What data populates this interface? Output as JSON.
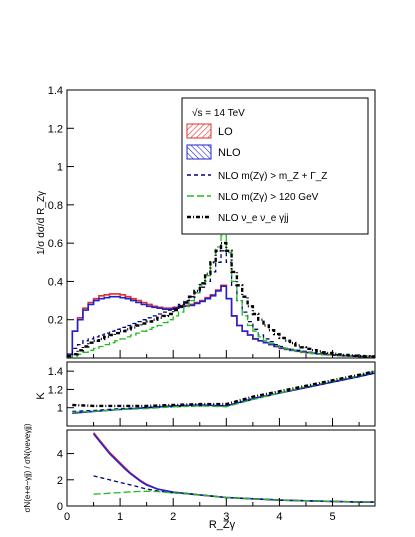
{
  "chart_data": [
    {
      "panel": "main",
      "type": "line",
      "ylabel": "1/σ dσ/d R_Zγ",
      "xlim": [
        0,
        5.8
      ],
      "ylim": [
        0,
        1.4
      ],
      "ytick_labels": [
        "0.2",
        "0.4",
        "0.6",
        "0.8",
        "1",
        "1.2",
        "1.4"
      ],
      "yticks": [
        0.2,
        0.4,
        0.6,
        0.8,
        1.0,
        1.2,
        1.4
      ],
      "legend": {
        "placement": "top-right",
        "title": "√s = 14 TeV",
        "entries": [
          {
            "label": "LO",
            "style": "hatched-box",
            "color": "#e0302a"
          },
          {
            "label": "NLO",
            "style": "hatched-box",
            "color": "#2222cc"
          },
          {
            "label": "NLO m(Zγ) > m_Z + Γ_Z",
            "style": "dashed",
            "color": "#000080"
          },
          {
            "label": "NLO m(Zγ) > 120 GeV",
            "style": "dashed",
            "color": "#22bb22"
          },
          {
            "label": "NLO ν_e ν_e γjj",
            "style": "dash-dot",
            "color": "#000000"
          }
        ]
      },
      "x": [
        0.05,
        0.15,
        0.25,
        0.35,
        0.45,
        0.55,
        0.65,
        0.75,
        0.85,
        0.95,
        1.05,
        1.15,
        1.25,
        1.35,
        1.45,
        1.55,
        1.65,
        1.75,
        1.85,
        1.95,
        2.05,
        2.15,
        2.25,
        2.35,
        2.45,
        2.55,
        2.65,
        2.75,
        2.85,
        2.95,
        3.05,
        3.15,
        3.25,
        3.35,
        3.45,
        3.55,
        3.65,
        3.75,
        3.85,
        3.95,
        4.05,
        4.15,
        4.25,
        4.35,
        4.45,
        4.55,
        4.65,
        4.75,
        4.85,
        4.95,
        5.05,
        5.15,
        5.25,
        5.35,
        5.45,
        5.55,
        5.65,
        5.75
      ],
      "series": [
        {
          "name": "LO",
          "color": "#e0302a",
          "values": [
            0.02,
            0.14,
            0.21,
            0.26,
            0.29,
            0.31,
            0.325,
            0.33,
            0.335,
            0.335,
            0.33,
            0.32,
            0.31,
            0.3,
            0.29,
            0.28,
            0.27,
            0.265,
            0.26,
            0.26,
            0.265,
            0.27,
            0.275,
            0.28,
            0.29,
            0.3,
            0.315,
            0.33,
            0.355,
            0.38,
            0.31,
            0.22,
            0.17,
            0.14,
            0.12,
            0.1,
            0.09,
            0.08,
            0.07,
            0.06,
            0.05,
            0.045,
            0.04,
            0.035,
            0.03,
            0.027,
            0.024,
            0.021,
            0.018,
            0.016,
            0.014,
            0.012,
            0.011,
            0.01,
            0.009,
            0.008,
            0.007,
            0.006
          ]
        },
        {
          "name": "NLO",
          "color": "#2222cc",
          "values": [
            0.02,
            0.14,
            0.2,
            0.25,
            0.28,
            0.3,
            0.31,
            0.315,
            0.32,
            0.32,
            0.315,
            0.31,
            0.3,
            0.29,
            0.28,
            0.27,
            0.265,
            0.26,
            0.255,
            0.255,
            0.26,
            0.265,
            0.27,
            0.275,
            0.285,
            0.295,
            0.31,
            0.325,
            0.35,
            0.375,
            0.31,
            0.22,
            0.17,
            0.14,
            0.12,
            0.1,
            0.09,
            0.08,
            0.07,
            0.06,
            0.052,
            0.046,
            0.04,
            0.036,
            0.032,
            0.028,
            0.025,
            0.022,
            0.02,
            0.018,
            0.016,
            0.014,
            0.012,
            0.011,
            0.01,
            0.009,
            0.008,
            0.007
          ]
        },
        {
          "name": "NLO m(Zγ) > m_Z + Γ_Z",
          "color": "#000080",
          "values": [
            0.01,
            0.05,
            0.07,
            0.09,
            0.1,
            0.11,
            0.12,
            0.13,
            0.14,
            0.15,
            0.16,
            0.17,
            0.18,
            0.19,
            0.2,
            0.21,
            0.22,
            0.23,
            0.24,
            0.25,
            0.26,
            0.28,
            0.3,
            0.32,
            0.34,
            0.37,
            0.4,
            0.45,
            0.5,
            0.56,
            0.5,
            0.38,
            0.3,
            0.24,
            0.19,
            0.15,
            0.12,
            0.1,
            0.085,
            0.07,
            0.06,
            0.05,
            0.045,
            0.04,
            0.035,
            0.03,
            0.026,
            0.022,
            0.02,
            0.017,
            0.015,
            0.013,
            0.011,
            0.01,
            0.009,
            0.008,
            0.007,
            0.006
          ]
        },
        {
          "name": "NLO m(Zγ) > 120 GeV",
          "color": "#22bb22",
          "values": [
            0.005,
            0.01,
            0.02,
            0.03,
            0.04,
            0.05,
            0.06,
            0.07,
            0.08,
            0.09,
            0.1,
            0.11,
            0.12,
            0.13,
            0.14,
            0.15,
            0.16,
            0.17,
            0.185,
            0.2,
            0.22,
            0.24,
            0.27,
            0.3,
            0.34,
            0.38,
            0.43,
            0.5,
            0.58,
            0.64,
            0.55,
            0.4,
            0.3,
            0.22,
            0.17,
            0.14,
            0.11,
            0.09,
            0.075,
            0.065,
            0.055,
            0.048,
            0.042,
            0.036,
            0.031,
            0.027,
            0.023,
            0.02,
            0.018,
            0.016,
            0.014,
            0.012,
            0.011,
            0.01,
            0.009,
            0.008,
            0.007,
            0.006
          ]
        },
        {
          "name": "NLO ν_e ν_e γjj",
          "color": "#000000",
          "values": [
            0.01,
            0.02,
            0.04,
            0.06,
            0.08,
            0.09,
            0.1,
            0.11,
            0.12,
            0.13,
            0.14,
            0.15,
            0.16,
            0.17,
            0.18,
            0.19,
            0.2,
            0.21,
            0.22,
            0.23,
            0.25,
            0.27,
            0.29,
            0.32,
            0.35,
            0.39,
            0.44,
            0.5,
            0.56,
            0.6,
            0.56,
            0.45,
            0.38,
            0.32,
            0.27,
            0.23,
            0.2,
            0.17,
            0.145,
            0.125,
            0.105,
            0.09,
            0.078,
            0.066,
            0.056,
            0.048,
            0.041,
            0.035,
            0.03,
            0.026,
            0.022,
            0.019,
            0.016,
            0.014,
            0.012,
            0.01,
            0.009,
            0.008
          ]
        }
      ]
    },
    {
      "panel": "K-factor",
      "type": "line",
      "ylabel": "K",
      "xlim": [
        0,
        5.8
      ],
      "ylim": [
        0.8,
        1.5
      ],
      "ytick_labels": [
        "1",
        "1.2",
        "1.4"
      ],
      "yticks": [
        1.0,
        1.2,
        1.4
      ],
      "x": [
        0.1,
        0.5,
        1.0,
        1.5,
        2.0,
        2.5,
        3.0,
        3.5,
        4.0,
        4.5,
        5.0,
        5.5,
        5.8
      ],
      "series": [
        {
          "name": "NLO",
          "color": "#2222cc",
          "values": [
            0.94,
            0.96,
            0.98,
            1.0,
            1.02,
            1.03,
            1.02,
            1.1,
            1.16,
            1.22,
            1.28,
            1.34,
            1.38
          ]
        },
        {
          "name": "NLO m(Zγ) > m_Z + Γ_Z",
          "color": "#000080",
          "values": [
            0.96,
            0.97,
            0.99,
            1.0,
            1.01,
            1.02,
            1.02,
            1.09,
            1.16,
            1.22,
            1.28,
            1.34,
            1.38
          ]
        },
        {
          "name": "NLO m(Zγ) > 120 GeV",
          "color": "#22bb22",
          "values": [
            0.95,
            0.96,
            0.98,
            0.99,
            1.01,
            1.02,
            1.01,
            1.09,
            1.16,
            1.23,
            1.29,
            1.35,
            1.4
          ]
        },
        {
          "name": "NLO ν_e ν_e γjj",
          "color": "#000000",
          "values": [
            1.03,
            1.02,
            1.02,
            1.02,
            1.03,
            1.04,
            1.04,
            1.12,
            1.18,
            1.24,
            1.3,
            1.36,
            1.4
          ]
        }
      ]
    },
    {
      "panel": "ratio",
      "type": "line",
      "ylabel": "σN(e+e−γjj) / σN(νeνeγjj)",
      "xlabel": "R_Zγ",
      "xlim": [
        0,
        5.8
      ],
      "ylim": [
        0,
        5.8
      ],
      "ytick_labels": [
        "0",
        "2",
        "4"
      ],
      "yticks": [
        0,
        2,
        4
      ],
      "xtick_labels": [
        "0",
        "1",
        "2",
        "3",
        "4",
        "5"
      ],
      "xticks": [
        0,
        1,
        2,
        3,
        4,
        5
      ],
      "x": [
        0.5,
        0.6,
        0.7,
        0.8,
        0.9,
        1.0,
        1.1,
        1.2,
        1.3,
        1.4,
        1.5,
        1.7,
        2.0,
        2.5,
        3.0,
        3.5,
        4.0,
        4.5,
        5.0,
        5.5,
        5.8
      ],
      "series": [
        {
          "name": "LO",
          "color": "#e0302a",
          "values": [
            5.6,
            5.1,
            4.6,
            4.1,
            3.7,
            3.3,
            2.9,
            2.5,
            2.2,
            1.9,
            1.65,
            1.3,
            1.05,
            0.85,
            0.65,
            0.55,
            0.45,
            0.4,
            0.35,
            0.3,
            0.3
          ]
        },
        {
          "name": "NLO",
          "color": "#2222cc",
          "values": [
            5.5,
            5.0,
            4.5,
            4.0,
            3.6,
            3.2,
            2.8,
            2.45,
            2.15,
            1.85,
            1.6,
            1.3,
            1.05,
            0.85,
            0.65,
            0.55,
            0.45,
            0.4,
            0.35,
            0.3,
            0.3
          ]
        },
        {
          "name": "NLO m(Zγ) > m_Z + Γ_Z",
          "color": "#000080",
          "values": [
            2.3,
            2.2,
            2.1,
            2.0,
            1.9,
            1.8,
            1.7,
            1.6,
            1.5,
            1.4,
            1.3,
            1.15,
            1.0,
            0.85,
            0.65,
            0.55,
            0.45,
            0.4,
            0.35,
            0.3,
            0.3
          ]
        },
        {
          "name": "NLO m(Zγ) > 120 GeV",
          "color": "#22bb22",
          "values": [
            0.9,
            0.92,
            0.95,
            0.98,
            1.0,
            1.02,
            1.05,
            1.08,
            1.1,
            1.12,
            1.12,
            1.1,
            1.0,
            0.85,
            0.65,
            0.55,
            0.45,
            0.4,
            0.35,
            0.3,
            0.3
          ]
        }
      ]
    }
  ]
}
